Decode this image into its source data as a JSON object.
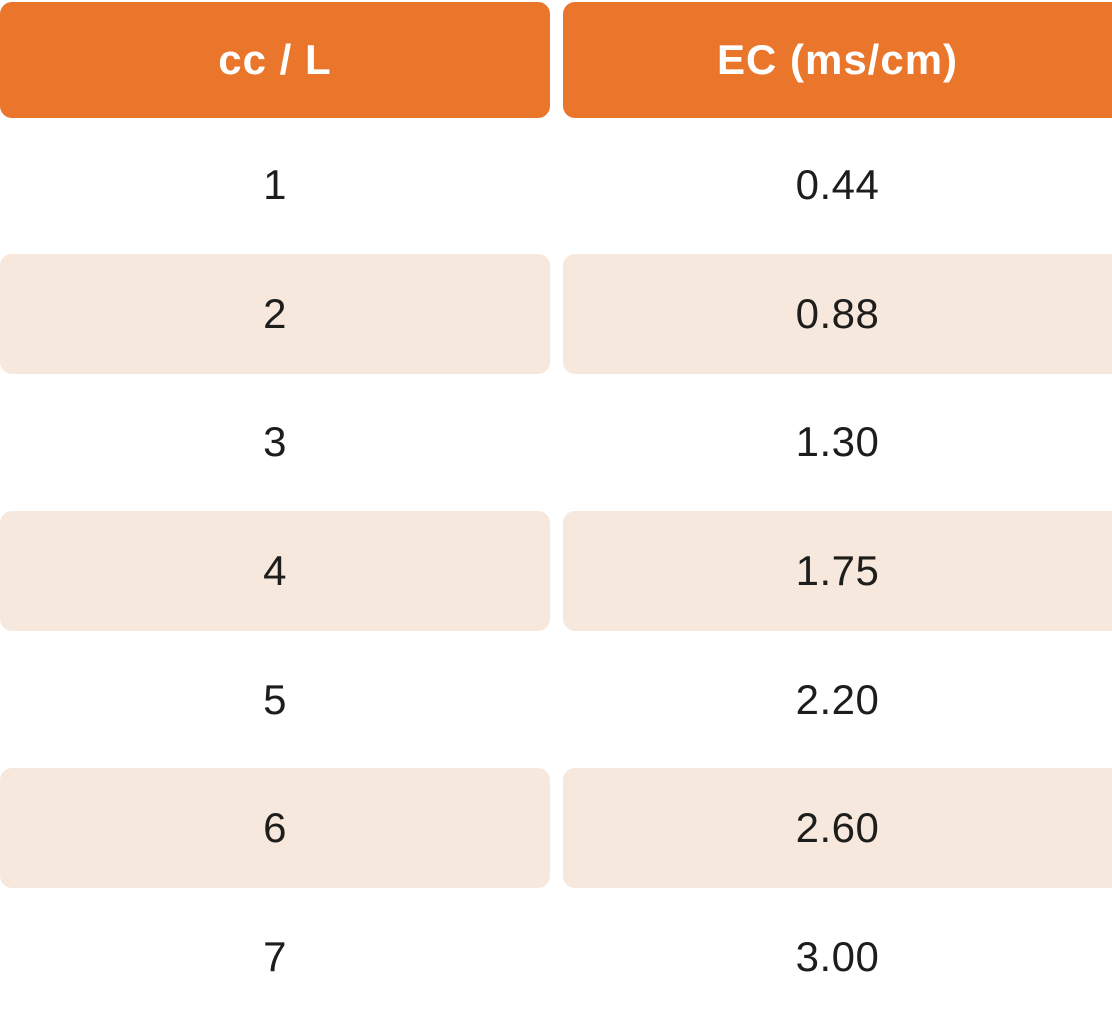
{
  "table": {
    "columns": [
      {
        "label": "cc / L"
      },
      {
        "label": "EC (ms/cm)"
      }
    ],
    "rows": [
      [
        "1",
        "0.44"
      ],
      [
        "2",
        "0.88"
      ],
      [
        "3",
        "1.30"
      ],
      [
        "4",
        "1.75"
      ],
      [
        "5",
        "2.20"
      ],
      [
        "6",
        "2.60"
      ],
      [
        "7",
        "3.00"
      ]
    ]
  },
  "colors": {
    "header_bg": "#e9762a",
    "stripe_bg": "#f7e8dd",
    "header_text": "#ffffff",
    "cell_text": "#1d1d1b",
    "page_bg": "#ffffff"
  },
  "chart_data": {
    "type": "table",
    "title": "",
    "columns": [
      "cc / L",
      "EC (ms/cm)"
    ],
    "x": [
      1,
      2,
      3,
      4,
      5,
      6,
      7
    ],
    "series": [
      {
        "name": "EC (ms/cm)",
        "values": [
          0.44,
          0.88,
          1.3,
          1.75,
          2.2,
          2.6,
          3.0
        ]
      }
    ],
    "layout": {
      "striped_rows": "even rows shaded",
      "header_style": "orange rounded pills"
    }
  }
}
